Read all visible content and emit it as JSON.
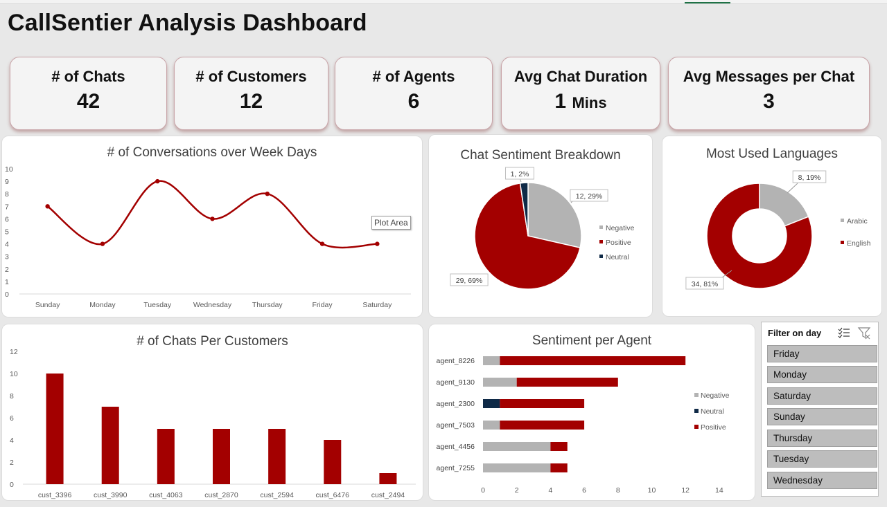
{
  "dashboard": {
    "title": "CallSentier Analysis Dashboard"
  },
  "kpis": [
    {
      "label": "# of Chats",
      "value": "42",
      "unit": ""
    },
    {
      "label": "# of Customers",
      "value": "12",
      "unit": ""
    },
    {
      "label": "# of Agents",
      "value": "6",
      "unit": ""
    },
    {
      "label": "Avg Chat Duration",
      "value": "1",
      "unit": "Mins"
    },
    {
      "label": "Avg Messages per Chat",
      "value": "3",
      "unit": ""
    }
  ],
  "tooltip": {
    "plot_area": "Plot Area"
  },
  "slicer": {
    "title": "Filter on day",
    "items": [
      "Friday",
      "Monday",
      "Saturday",
      "Sunday",
      "Thursday",
      "Tuesday",
      "Wednesday"
    ]
  },
  "colors": {
    "red": "#a30000",
    "gray": "#b3b3b3",
    "navy": "#0f2a47"
  },
  "chart_data": [
    {
      "type": "line",
      "title": "# of Conversations over Week Days",
      "categories": [
        "Sunday",
        "Monday",
        "Tuesday",
        "Wednesday",
        "Thursday",
        "Friday",
        "Saturday"
      ],
      "values": [
        7,
        4,
        9,
        6,
        8,
        4,
        4
      ],
      "ylim": [
        0,
        10
      ],
      "yticks": [
        "0",
        "1",
        "2",
        "3",
        "4",
        "5",
        "6",
        "7",
        "8",
        "9",
        "10"
      ],
      "smooth": true
    },
    {
      "type": "pie",
      "title": "Chat Sentiment Breakdown",
      "slices": [
        {
          "name": "Negative",
          "value": 12,
          "label": "12, 29%"
        },
        {
          "name": "Positive",
          "value": 29,
          "label": "29, 69%"
        },
        {
          "name": "Neutral",
          "value": 1,
          "label": "1, 2%"
        }
      ],
      "legend": "right"
    },
    {
      "type": "pie",
      "title": "Most Used Languages",
      "donut": true,
      "slices": [
        {
          "name": "Arabic",
          "value": 8,
          "label": "8, 19%"
        },
        {
          "name": "English",
          "value": 34,
          "label": "34, 81%"
        }
      ],
      "legend": "right"
    },
    {
      "type": "bar",
      "title": "# of Chats Per Customers",
      "categories": [
        "cust_3396",
        "cust_3990",
        "cust_4063",
        "cust_2870",
        "cust_2594",
        "cust_6476",
        "cust_2494"
      ],
      "values": [
        10,
        7,
        5,
        5,
        5,
        4,
        1
      ],
      "ylim": [
        0,
        12
      ],
      "yticks": [
        "0",
        "2",
        "4",
        "6",
        "8",
        "10",
        "12"
      ]
    },
    {
      "type": "bar",
      "orientation": "horizontal",
      "stacked": true,
      "title": "Sentiment per Agent",
      "categories": [
        "agent_8226",
        "agent_9130",
        "agent_2300",
        "agent_7503",
        "agent_4456",
        "agent_7255"
      ],
      "series": [
        {
          "name": "Negative",
          "values": [
            1,
            2,
            0,
            1,
            4,
            4
          ]
        },
        {
          "name": "Neutral",
          "values": [
            0,
            0,
            1,
            0,
            0,
            0
          ]
        },
        {
          "name": "Positive",
          "values": [
            11,
            6,
            5,
            5,
            1,
            1
          ]
        }
      ],
      "xlim": [
        0,
        14
      ],
      "xticks": [
        "0",
        "2",
        "4",
        "6",
        "8",
        "10",
        "12",
        "14"
      ],
      "legend": "right"
    }
  ]
}
